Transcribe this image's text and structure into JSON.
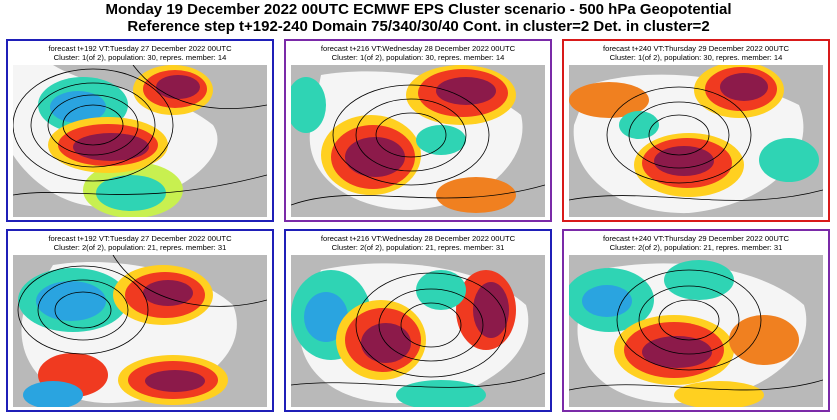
{
  "header": {
    "line1": "Monday 19 December 2022 00UTC ECMWF EPS Cluster scenario - 500 hPa Geopotential",
    "line2": "Reference step t+192-240 Domain 75/340/30/40 Cont. in cluster=2 Det. in cluster=2"
  },
  "colors": {
    "frame_blue": "#1f1fb8",
    "frame_purple": "#7a2aa8",
    "frame_red": "#d81a1a",
    "land": "#b9b9b9",
    "ocean": "#ffffff"
  },
  "panels": [
    {
      "frame_color": "#1f1fb8",
      "line1": "forecast t+192 VT:Tuesday 27 December 2022 00UTC",
      "line2": "Cluster: 1(of 2), population: 30, repres. member: 14"
    },
    {
      "frame_color": "#7a2aa8",
      "line1": "forecast t+216 VT:Wednesday 28 December 2022 00UTC",
      "line2": "Cluster: 1(of 2), population: 30, repres. member: 14"
    },
    {
      "frame_color": "#d81a1a",
      "line1": "forecast t+240 VT:Thursday 29 December 2022 00UTC",
      "line2": "Cluster: 1(of 2), population: 30, repres. member: 14"
    },
    {
      "frame_color": "#1f1fb8",
      "line1": "forecast t+192 VT:Tuesday 27 December 2022 00UTC",
      "line2": "Cluster: 2(of 2), population: 21, repres. member: 31"
    },
    {
      "frame_color": "#1f1fb8",
      "line1": "forecast t+216 VT:Wednesday 28 December 2022 00UTC",
      "line2": "Cluster: 2(of 2), population: 21, repres. member: 31"
    },
    {
      "frame_color": "#7a2aa8",
      "line1": "forecast t+240 VT:Thursday 29 December 2022 00UTC",
      "line2": "Cluster: 2(of 2), population: 21, repres. member: 31"
    }
  ]
}
